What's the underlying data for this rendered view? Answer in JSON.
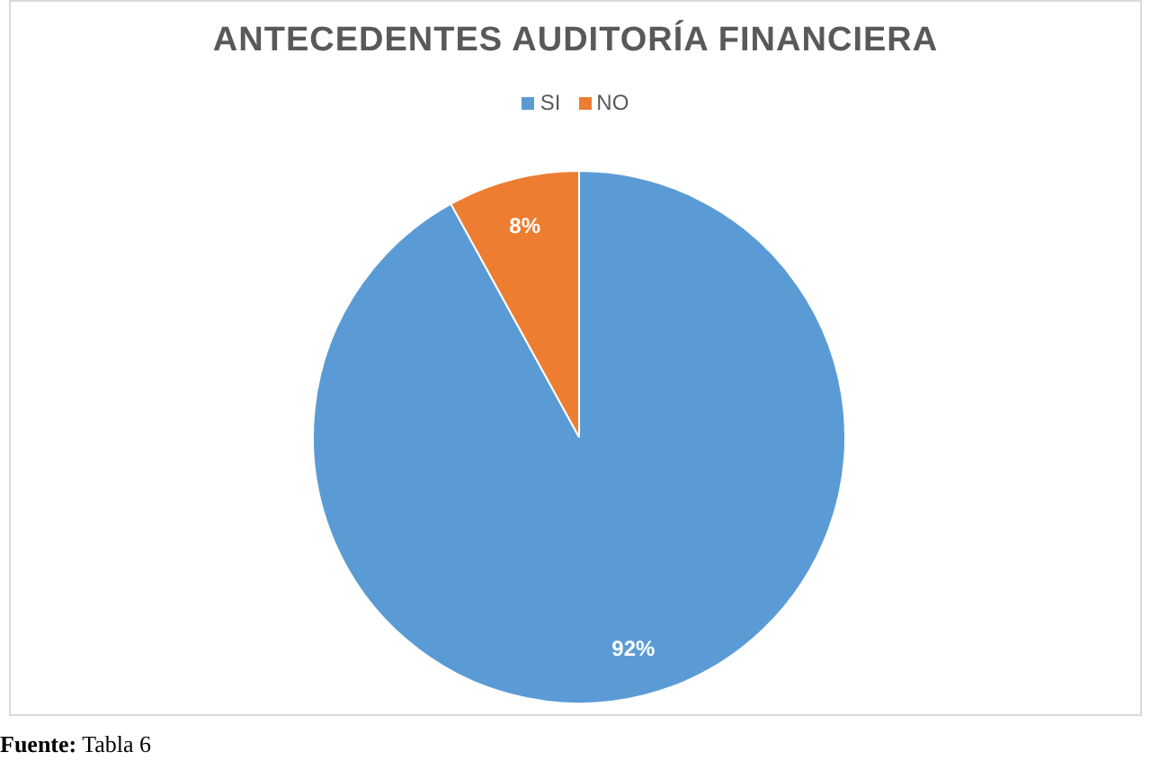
{
  "chart_data": {
    "type": "pie",
    "title": "ANTECEDENTES AUDITORÍA FINANCIERA",
    "categories": [
      "SI",
      "NO"
    ],
    "values": [
      92,
      8
    ],
    "colors": [
      "#5b9bd5",
      "#ed7d31"
    ],
    "legend": "top",
    "value_labels": [
      "92%",
      "8%"
    ],
    "annotations": [
      "Fuente: Tabla 6"
    ]
  }
}
